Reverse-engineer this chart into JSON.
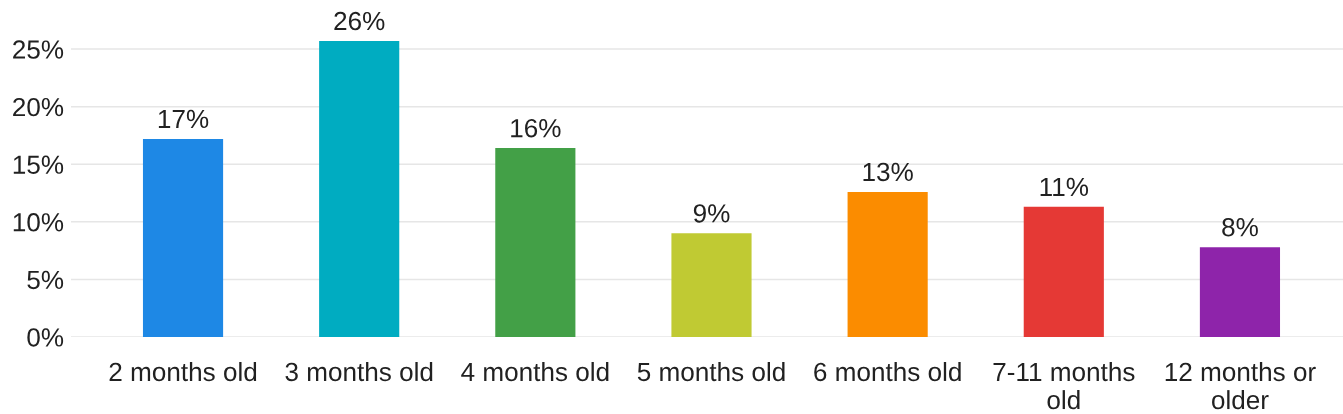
{
  "chart_data": {
    "type": "bar",
    "categories": [
      "2 months old",
      "3 months old",
      "4 months old",
      "5 months old",
      "6 months old",
      "7-11 months old",
      "12 months or older"
    ],
    "values": [
      17.2,
      25.7,
      16.4,
      9.0,
      12.6,
      11.3,
      7.8
    ],
    "colors": [
      "#1e88e5",
      "#00acc1",
      "#43a047",
      "#c0ca33",
      "#fb8c00",
      "#e53935",
      "#8e24aa"
    ],
    "value_labels": [
      "17%",
      "26%",
      "16%",
      "9%",
      "13%",
      "11%",
      "8%"
    ],
    "ylim": [
      0,
      25.7
    ],
    "yticks": [
      {
        "value": 0,
        "label": "0%"
      },
      {
        "value": 5,
        "label": "5%"
      },
      {
        "value": 10,
        "label": "10%"
      },
      {
        "value": 15,
        "label": "15%"
      },
      {
        "value": 20,
        "label": "20%"
      },
      {
        "value": 25,
        "label": "25%"
      }
    ],
    "grid": "y"
  }
}
